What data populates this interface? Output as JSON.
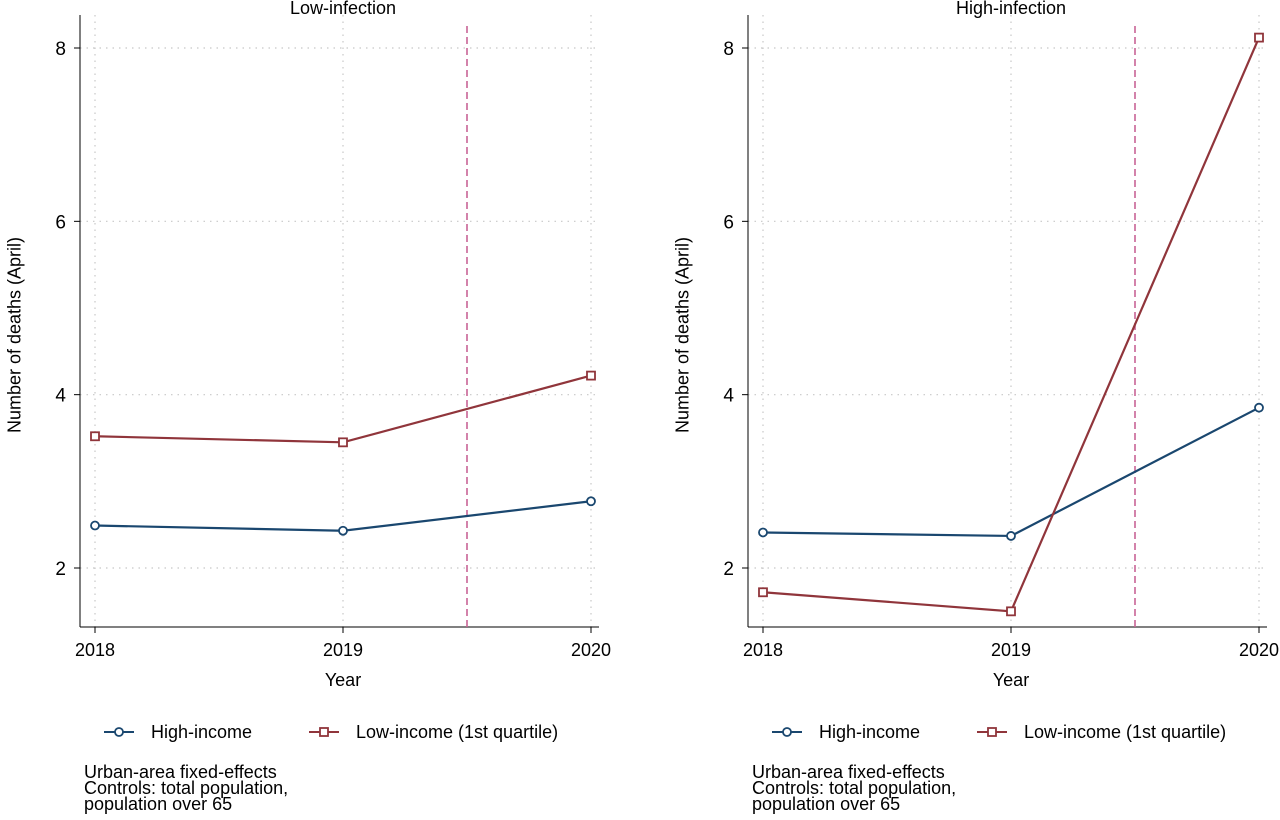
{
  "chart_data": [
    {
      "type": "line",
      "title": "Low-infection",
      "xlabel": "Year",
      "ylabel": "Number of deaths (April)",
      "x": [
        2018,
        2019,
        2020
      ],
      "ylim": [
        1.3,
        8.3
      ],
      "yticks": [
        2,
        4,
        6,
        8
      ],
      "grid": true,
      "reference_line_x": 2019.5,
      "series": [
        {
          "name": "High-income",
          "values": [
            2.49,
            2.43,
            2.77
          ],
          "color": "#1a476f",
          "marker": "circle"
        },
        {
          "name": "Low-income (1st quartile)",
          "values": [
            3.52,
            3.45,
            4.22
          ],
          "color": "#90353b",
          "marker": "square"
        }
      ],
      "legend": "bottom",
      "note": "Urban-area fixed-effects\nControls: total population,\npopulation over 65"
    },
    {
      "type": "line",
      "title": "High-infection",
      "xlabel": "Year",
      "ylabel": "Number of deaths (April)",
      "x": [
        2018,
        2019,
        2020
      ],
      "ylim": [
        1.3,
        8.3
      ],
      "yticks": [
        2,
        4,
        6,
        8
      ],
      "grid": true,
      "reference_line_x": 2019.5,
      "series": [
        {
          "name": "High-income",
          "values": [
            2.41,
            2.37,
            3.85
          ],
          "color": "#1a476f",
          "marker": "circle"
        },
        {
          "name": "Low-income (1st quartile)",
          "values": [
            1.72,
            1.5,
            8.12
          ],
          "color": "#90353b",
          "marker": "square"
        }
      ],
      "legend": "bottom",
      "note": "Urban-area fixed-effects\nControls: total population,\npopulation over 65"
    }
  ],
  "colors": {
    "reference_line": "#c86496",
    "grid": "#c8c8c8",
    "axis": "#000000"
  }
}
